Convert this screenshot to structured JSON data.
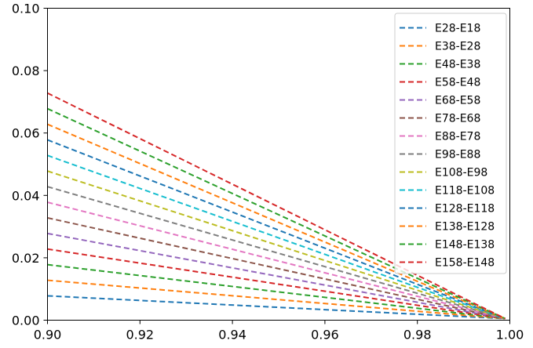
{
  "chart_data": {
    "type": "line",
    "title": "",
    "xlabel": "",
    "ylabel": "",
    "xlim": [
      0.9,
      1.0
    ],
    "ylim": [
      0.0,
      0.1
    ],
    "x_ticks": [
      "0.90",
      "0.92",
      "0.94",
      "0.96",
      "0.98",
      "1.00"
    ],
    "y_ticks": [
      "0.00",
      "0.02",
      "0.04",
      "0.06",
      "0.08",
      "0.10"
    ],
    "x_tick_values": [
      0.9,
      0.92,
      0.94,
      0.96,
      0.98,
      1.0
    ],
    "y_tick_values": [
      0.0,
      0.02,
      0.04,
      0.06,
      0.08,
      0.1
    ],
    "grid": false,
    "legend_position": "top-right",
    "line_style": "dashed",
    "series": [
      {
        "name": "E28-E18",
        "color": "#1f77b4",
        "x": [
          0.9,
          0.999
        ],
        "y": [
          0.0078,
          0.0005
        ]
      },
      {
        "name": "E38-E28",
        "color": "#ff7f0e",
        "x": [
          0.9,
          0.999
        ],
        "y": [
          0.0128,
          0.0005
        ]
      },
      {
        "name": "E48-E38",
        "color": "#2ca02c",
        "x": [
          0.9,
          0.999
        ],
        "y": [
          0.0178,
          0.0005
        ]
      },
      {
        "name": "E58-E48",
        "color": "#d62728",
        "x": [
          0.9,
          0.999
        ],
        "y": [
          0.0228,
          0.0005
        ]
      },
      {
        "name": "E68-E58",
        "color": "#9467bd",
        "x": [
          0.9,
          0.999
        ],
        "y": [
          0.0278,
          0.0005
        ]
      },
      {
        "name": "E78-E68",
        "color": "#8c564b",
        "x": [
          0.9,
          0.999
        ],
        "y": [
          0.0328,
          0.0005
        ]
      },
      {
        "name": "E88-E78",
        "color": "#e377c2",
        "x": [
          0.9,
          0.999
        ],
        "y": [
          0.0378,
          0.0005
        ]
      },
      {
        "name": "E98-E88",
        "color": "#7f7f7f",
        "x": [
          0.9,
          0.999
        ],
        "y": [
          0.0428,
          0.0005
        ]
      },
      {
        "name": "E108-E98",
        "color": "#bcbd22",
        "x": [
          0.9,
          0.999
        ],
        "y": [
          0.0478,
          0.0005
        ]
      },
      {
        "name": "E118-E108",
        "color": "#17becf",
        "x": [
          0.9,
          0.999
        ],
        "y": [
          0.0528,
          0.0005
        ]
      },
      {
        "name": "E128-E118",
        "color": "#1f77b4",
        "x": [
          0.9,
          0.999
        ],
        "y": [
          0.0578,
          0.0005
        ]
      },
      {
        "name": "E138-E128",
        "color": "#ff7f0e",
        "x": [
          0.9,
          0.999
        ],
        "y": [
          0.0628,
          0.0005
        ]
      },
      {
        "name": "E148-E138",
        "color": "#2ca02c",
        "x": [
          0.9,
          0.999
        ],
        "y": [
          0.0678,
          0.0005
        ]
      },
      {
        "name": "E158-E148",
        "color": "#d62728",
        "x": [
          0.9,
          0.999
        ],
        "y": [
          0.0728,
          0.0005
        ]
      }
    ]
  }
}
